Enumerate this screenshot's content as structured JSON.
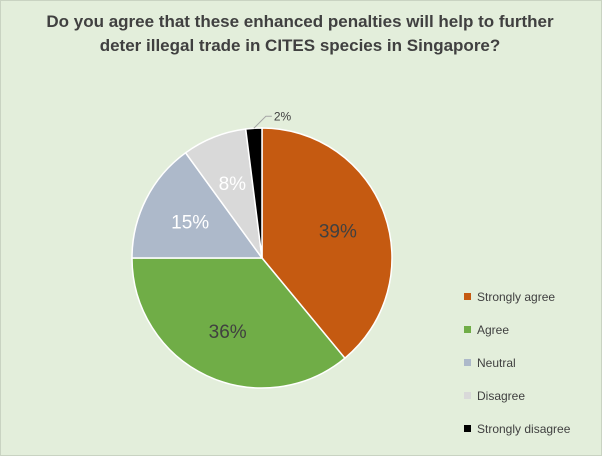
{
  "chart_data": {
    "type": "pie",
    "title": "Do you agree that these enhanced penalties will help to further deter illegal trade in CITES species in Singapore?",
    "categories": [
      "Strongly agree",
      "Agree",
      "Neutral",
      "Disagree",
      "Strongly disagree"
    ],
    "values": [
      39,
      36,
      15,
      8,
      2
    ],
    "data_labels": [
      "39%",
      "36%",
      "15%",
      "8%",
      "2%"
    ],
    "colors": [
      "#c55a11",
      "#70ad47",
      "#adb9ca",
      "#d9d9d9",
      "#000000"
    ],
    "label_colors": [
      "#404040",
      "#404040",
      "#ffffff",
      "#ffffff",
      "#404040"
    ],
    "legend_position": "right",
    "start_angle_deg": 0,
    "direction": "clockwise"
  }
}
